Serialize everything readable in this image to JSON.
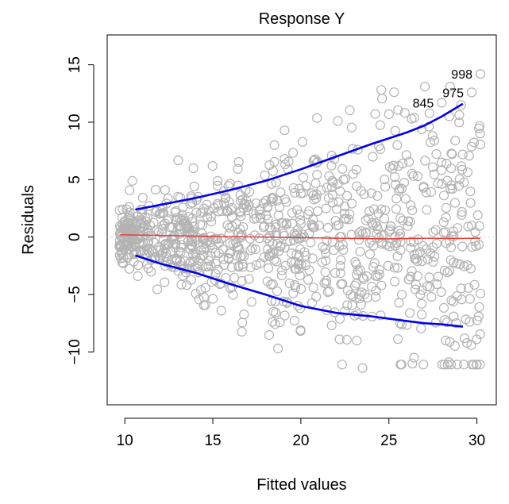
{
  "chart_data": {
    "type": "scatter",
    "title": "Response Y",
    "xlabel": "Fitted values",
    "ylabel": "Residuals",
    "xlim": [
      9,
      31.1
    ],
    "ylim": [
      -14.6,
      17.6
    ],
    "xticks": [
      10,
      15,
      20,
      25,
      30
    ],
    "yticks": [
      -10,
      -5,
      0,
      5,
      10,
      15
    ],
    "reference_line_y": 0,
    "colors": {
      "points": "#b3b3b3",
      "smooth": "#e53935",
      "bands": "#0000ee",
      "reference": "#cccccc"
    },
    "n_points": 1000,
    "random_seed": 11,
    "point_cloud_model": {
      "x_range": [
        9.7,
        30.2
      ],
      "x_density": "heavier toward low fitted values",
      "residual_sd_at_x10": 1.0,
      "residual_sd_growth_per_unit": 0.24
    },
    "smooth_line": {
      "x": [
        9.7,
        12,
        15,
        18,
        20,
        22,
        25,
        27,
        29,
        30.2
      ],
      "y": [
        0.2,
        0.15,
        0.05,
        0.0,
        -0.05,
        -0.1,
        -0.15,
        -0.1,
        -0.12,
        -0.1
      ]
    },
    "upper_band": {
      "x": [
        10.6,
        12,
        14,
        16,
        18,
        20,
        22,
        24,
        26,
        27,
        28,
        29.2
      ],
      "y": [
        2.4,
        2.8,
        3.4,
        4.1,
        4.9,
        5.9,
        7.0,
        8.1,
        9.1,
        9.7,
        10.5,
        11.6
      ]
    },
    "lower_band": {
      "x": [
        10.6,
        12,
        14,
        16,
        18,
        20,
        22,
        24,
        26,
        27,
        28,
        29.2
      ],
      "y": [
        -1.6,
        -2.3,
        -3.1,
        -4.1,
        -5.0,
        -6.0,
        -6.6,
        -6.9,
        -7.3,
        -7.5,
        -7.6,
        -7.8
      ]
    },
    "highlighted_points": [
      {
        "label": "998",
        "x": 30.2,
        "y": 14.2
      },
      {
        "label": "975",
        "x": 29.7,
        "y": 12.6
      },
      {
        "label": "845",
        "x": 28.0,
        "y": 11.7
      }
    ],
    "extra_points": [
      {
        "x": 18.7,
        "y": -9.7
      },
      {
        "x": 23.5,
        "y": -11.4
      },
      {
        "x": 18.5,
        "y": 8.0
      },
      {
        "x": 13.9,
        "y": 6.0
      },
      {
        "x": 25.0,
        "y": 10.7
      },
      {
        "x": 29.1,
        "y": 11.5
      },
      {
        "x": 22.2,
        "y": -8.9
      },
      {
        "x": 30.1,
        "y": -6.9
      }
    ]
  }
}
